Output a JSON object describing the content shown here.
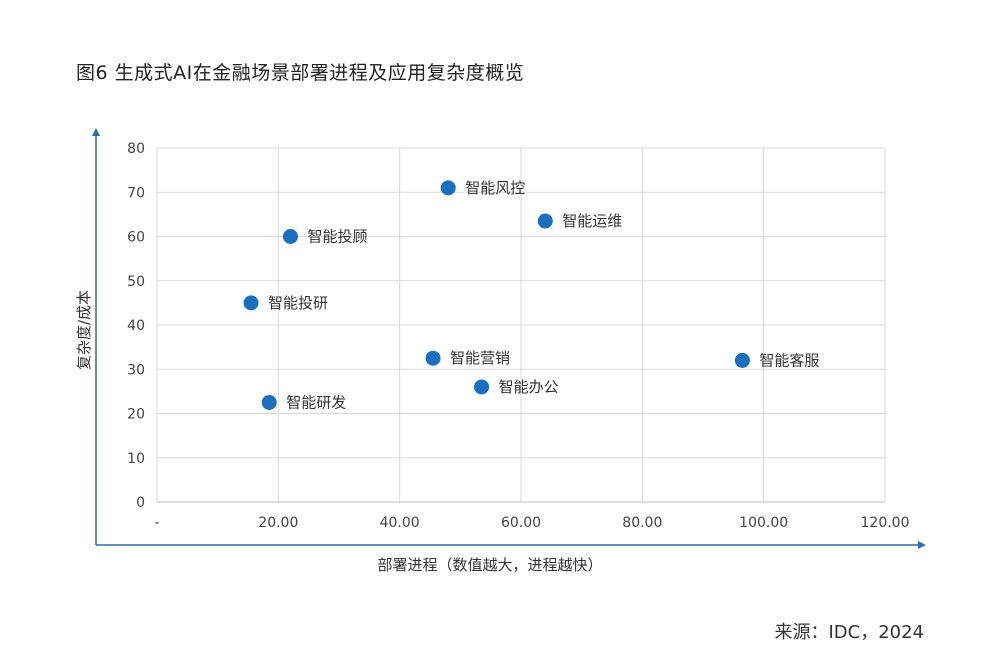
{
  "figure_title": "图6 生成式AI在金融场景部署进程及应用复杂度概览",
  "source": "来源：IDC，2024",
  "chart_data": {
    "type": "scatter",
    "title": "图6 生成式AI在金融场景部署进程及应用复杂度概览",
    "xlabel": "部署进程（数值越大，进程越快）",
    "ylabel": "复杂度/成本",
    "xlim": [
      0,
      120
    ],
    "ylim": [
      0,
      80
    ],
    "x_ticks": [
      0,
      20,
      40,
      60,
      80,
      100,
      120
    ],
    "x_tick_labels": [
      "-",
      "20.00",
      "40.00",
      "60.00",
      "80.00",
      "100.00",
      "120.00"
    ],
    "y_ticks": [
      0,
      10,
      20,
      30,
      40,
      50,
      60,
      70,
      80
    ],
    "y_tick_labels": [
      "0",
      "10",
      "20",
      "30",
      "40",
      "50",
      "60",
      "70",
      "80"
    ],
    "grid": true,
    "marker_color": "#1a6fbe",
    "points": [
      {
        "label": "智能风控",
        "x": 48.0,
        "y": 71
      },
      {
        "label": "智能运维",
        "x": 64.0,
        "y": 63.5
      },
      {
        "label": "智能投顾",
        "x": 22.0,
        "y": 60
      },
      {
        "label": "智能投研",
        "x": 15.5,
        "y": 45
      },
      {
        "label": "智能营销",
        "x": 45.5,
        "y": 32.5
      },
      {
        "label": "智能客服",
        "x": 96.5,
        "y": 32
      },
      {
        "label": "智能办公",
        "x": 53.5,
        "y": 26
      },
      {
        "label": "智能研发",
        "x": 18.5,
        "y": 22.5
      }
    ]
  }
}
